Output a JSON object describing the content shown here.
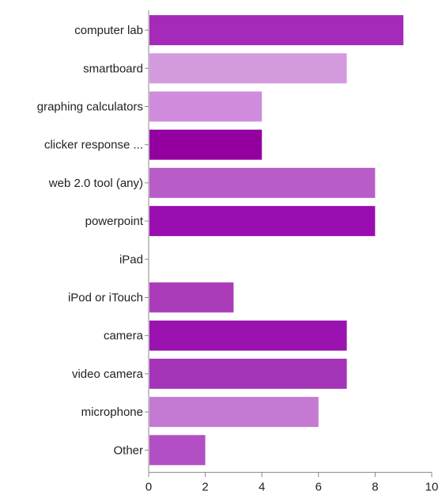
{
  "chart_data": {
    "type": "bar",
    "orientation": "horizontal",
    "categories": [
      "computer lab",
      "smartboard",
      "graphing calculators",
      "clicker response ...",
      "web 2.0 tool (any)",
      "powerpoint",
      "iPad",
      "iPod or iTouch",
      "camera",
      "video camera",
      "microphone",
      "Other"
    ],
    "values": [
      9,
      7,
      4,
      4,
      8,
      8,
      0,
      3,
      7,
      7,
      6,
      2
    ],
    "colors": [
      "#a42ab9",
      "#d49ade",
      "#cf8cdc",
      "#93009f",
      "#b85dc8",
      "#9a0eb1",
      "#c36dd4",
      "#aa3cba",
      "#9a12b0",
      "#a434b8",
      "#c47ad2",
      "#b24fc4"
    ],
    "xlim": [
      0,
      10
    ],
    "xticks": [
      0,
      2,
      4,
      6,
      8,
      10
    ],
    "axis_color": "#888888",
    "title": "",
    "xlabel": "",
    "ylabel": ""
  }
}
